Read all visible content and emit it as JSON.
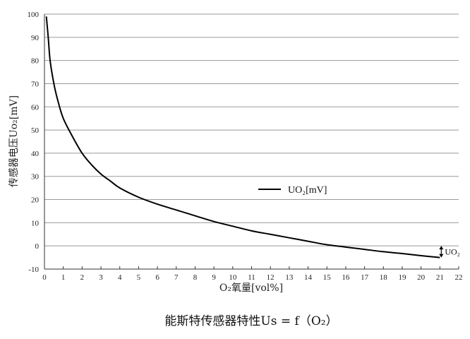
{
  "chart_data": {
    "type": "line",
    "caption": "能斯特传感器特性Us = f（O₂）",
    "xlabel": "O₂氧量[vol%]",
    "ylabel": "传感器电压Uo₂[mV]",
    "xlim": [
      0,
      22
    ],
    "ylim": [
      -10,
      100
    ],
    "xticks": [
      0,
      1,
      2,
      3,
      4,
      5,
      6,
      7,
      8,
      9,
      10,
      11,
      12,
      13,
      14,
      15,
      16,
      17,
      18,
      19,
      20,
      21,
      22
    ],
    "yticks": [
      -10,
      0,
      10,
      20,
      30,
      40,
      50,
      60,
      70,
      80,
      90,
      100
    ],
    "grid": "horizontal",
    "legend_position": "center-right",
    "series": [
      {
        "name": "UO₂[mV]",
        "color": "#000000",
        "x": [
          0.1,
          0.2,
          0.3,
          0.5,
          0.7,
          1.0,
          1.5,
          2.0,
          2.5,
          3.0,
          3.5,
          4.0,
          5.0,
          6.0,
          7.0,
          8.0,
          9.0,
          10.0,
          11.0,
          12.0,
          13.0,
          14.0,
          15.0,
          16.0,
          17.0,
          18.0,
          19.0,
          20.0,
          21.0
        ],
        "y": [
          99,
          90,
          80,
          70,
          63,
          55,
          47,
          40,
          35,
          31,
          28,
          25,
          21,
          18,
          15.5,
          13,
          10.5,
          8.5,
          6.5,
          5,
          3.5,
          2,
          0.5,
          -0.5,
          -1.5,
          -2.5,
          -3.3,
          -4.2,
          -5
        ]
      }
    ],
    "annotation": {
      "label": "UO₂",
      "x": 21,
      "y_from": 0,
      "y_to": -5
    }
  }
}
